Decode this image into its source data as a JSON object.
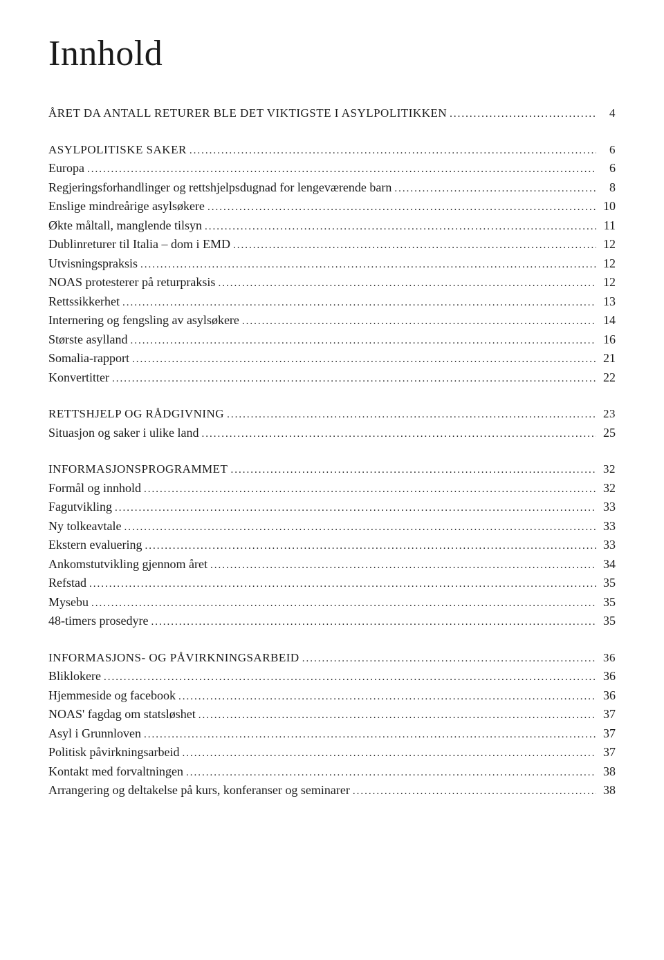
{
  "title": "Innhold",
  "colors": {
    "text": "#1a1a1a",
    "background": "#ffffff"
  },
  "typography": {
    "title_fontsize_pt": 40,
    "section_fontsize_pt": 13,
    "entry_fontsize_pt": 14,
    "font_family": "Georgia, serif"
  },
  "toc": [
    {
      "type": "section",
      "label": "ÅRET DA ANTALL RETURER BLE DET VIKTIGSTE I ASYLPOLITIKKEN",
      "page": "4"
    },
    {
      "type": "gap"
    },
    {
      "type": "section",
      "label": "ASYLPOLITISKE SAKER",
      "page": "6"
    },
    {
      "type": "entry",
      "label": "Europa",
      "page": "6"
    },
    {
      "type": "entry",
      "label": "Regjeringsforhandlinger og rettshjelpsdugnad for lengeværende barn",
      "page": "8"
    },
    {
      "type": "entry",
      "label": "Enslige mindreårige asylsøkere",
      "page": "10"
    },
    {
      "type": "entry",
      "label": "Økte måltall, manglende tilsyn",
      "page": "11"
    },
    {
      "type": "entry",
      "label": "Dublinreturer til Italia – dom i EMD",
      "page": "12"
    },
    {
      "type": "entry",
      "label": "Utvisningspraksis",
      "page": "12"
    },
    {
      "type": "entry",
      "label": "NOAS protesterer på returpraksis",
      "page": "12"
    },
    {
      "type": "entry",
      "label": "Rettssikkerhet",
      "page": "13"
    },
    {
      "type": "entry",
      "label": "Internering og fengsling av asylsøkere",
      "page": "14"
    },
    {
      "type": "entry",
      "label": "Største asylland",
      "page": "16"
    },
    {
      "type": "entry",
      "label": "Somalia-rapport",
      "page": "21"
    },
    {
      "type": "entry",
      "label": "Konvertitter",
      "page": "22"
    },
    {
      "type": "gap"
    },
    {
      "type": "section",
      "label": "RETTSHJELP OG RÅDGIVNING",
      "page": "23"
    },
    {
      "type": "entry",
      "label": "Situasjon og saker i ulike land",
      "page": "25"
    },
    {
      "type": "gap"
    },
    {
      "type": "section",
      "label": "INFORMASJONSPROGRAMMET",
      "page": "32"
    },
    {
      "type": "entry",
      "label": "Formål og innhold",
      "page": "32"
    },
    {
      "type": "entry",
      "label": "Fagutvikling",
      "page": "33"
    },
    {
      "type": "entry",
      "label": "Ny tolkeavtale",
      "page": "33"
    },
    {
      "type": "entry",
      "label": "Ekstern evaluering",
      "page": "33"
    },
    {
      "type": "entry",
      "label": "Ankomstutvikling gjennom året",
      "page": "34"
    },
    {
      "type": "entry",
      "label": "Refstad",
      "page": "35"
    },
    {
      "type": "entry",
      "label": "Mysebu",
      "page": "35"
    },
    {
      "type": "entry",
      "label": "48-timers prosedyre",
      "page": "35"
    },
    {
      "type": "gap"
    },
    {
      "type": "section",
      "label": "INFORMASJONS- OG PÅVIRKNINGSARBEID",
      "page": "36"
    },
    {
      "type": "entry",
      "label": "Bliklokere",
      "page": "36"
    },
    {
      "type": "entry",
      "label": "Hjemmeside og facebook",
      "page": "36"
    },
    {
      "type": "entry",
      "label": "NOAS' fagdag om statsløshet",
      "page": "37"
    },
    {
      "type": "entry",
      "label": "Asyl i Grunnloven",
      "page": "37"
    },
    {
      "type": "entry",
      "label": "Politisk påvirkningsarbeid",
      "page": "37"
    },
    {
      "type": "entry",
      "label": "Kontakt med forvaltningen",
      "page": "38"
    },
    {
      "type": "entry",
      "label": "Arrangering og deltakelse på kurs, konferanser og seminarer",
      "page": "38"
    }
  ]
}
